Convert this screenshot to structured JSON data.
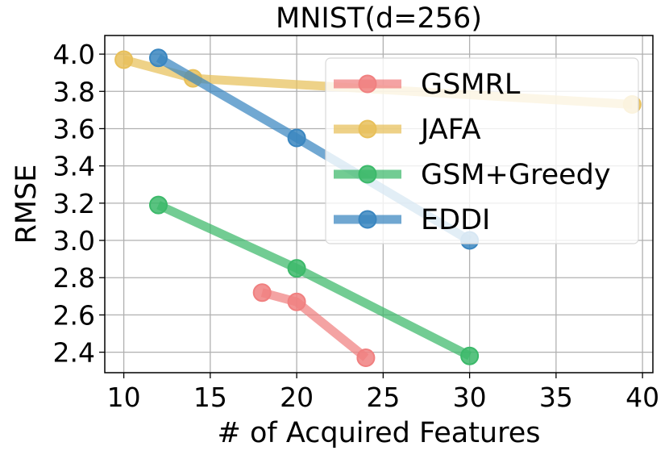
{
  "chart_data": {
    "type": "line",
    "title": "MNIST(d=256)",
    "xlabel": "# of Acquired Features",
    "ylabel": "RMSE",
    "xlim": [
      8.9,
      40.6
    ],
    "ylim": [
      2.29,
      4.1
    ],
    "xticks": [
      10,
      15,
      20,
      25,
      30,
      35,
      40
    ],
    "yticks": [
      2.4,
      2.6,
      2.8,
      3.0,
      3.2,
      3.4,
      3.6,
      3.8,
      4.0
    ],
    "xtick_labels": [
      "10",
      "15",
      "20",
      "25",
      "30",
      "35",
      "40"
    ],
    "ytick_labels": [
      "2.4",
      "2.6",
      "2.8",
      "3.0",
      "3.2",
      "3.4",
      "3.6",
      "3.8",
      "4.0"
    ],
    "grid": true,
    "legend_position": "upper-right",
    "series": [
      {
        "name": "GSMRL",
        "color": "#f08080",
        "x": [
          18,
          20,
          24
        ],
        "y": [
          2.72,
          2.67,
          2.37
        ]
      },
      {
        "name": "JAFA",
        "color": "#e8c05a",
        "x": [
          10,
          14,
          39.4
        ],
        "y": [
          3.97,
          3.87,
          3.73
        ]
      },
      {
        "name": "GSM+Greedy",
        "color": "#3cb96a",
        "x": [
          12,
          20,
          30
        ],
        "y": [
          3.19,
          2.85,
          2.38
        ]
      },
      {
        "name": "EDDI",
        "color": "#3a86c0",
        "x": [
          12,
          20,
          30
        ],
        "y": [
          3.98,
          3.55,
          3.0
        ]
      }
    ]
  }
}
